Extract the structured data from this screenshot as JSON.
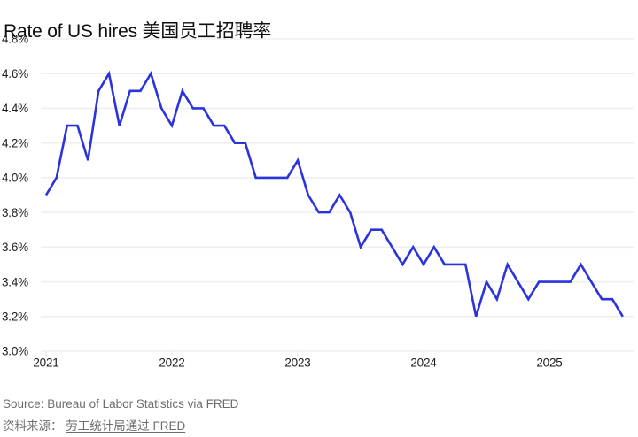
{
  "chart_data": {
    "type": "line",
    "title": "Rate of US hires 美国员工招聘率",
    "ylim": [
      3.0,
      4.8
    ],
    "grid": "horizontal",
    "legend": "none",
    "y_tick_labels": [
      "3.0%",
      "3.2%",
      "3.4%",
      "3.6%",
      "3.8%",
      "4.0%",
      "4.2%",
      "4.4%",
      "4.6%",
      "4.8%"
    ],
    "x_tick_labels": [
      "2021",
      "2022",
      "2023",
      "2024",
      "2025"
    ],
    "x": [
      "2021-01",
      "2021-02",
      "2021-03",
      "2021-04",
      "2021-05",
      "2021-06",
      "2021-07",
      "2021-08",
      "2021-09",
      "2021-10",
      "2021-11",
      "2021-12",
      "2022-01",
      "2022-02",
      "2022-03",
      "2022-04",
      "2022-05",
      "2022-06",
      "2022-07",
      "2022-08",
      "2022-09",
      "2022-10",
      "2022-11",
      "2022-12",
      "2023-01",
      "2023-02",
      "2023-03",
      "2023-04",
      "2023-05",
      "2023-06",
      "2023-07",
      "2023-08",
      "2023-09",
      "2023-10",
      "2023-11",
      "2023-12",
      "2024-01",
      "2024-02",
      "2024-03",
      "2024-04",
      "2024-05",
      "2024-06",
      "2024-07",
      "2024-08",
      "2024-09",
      "2024-10",
      "2024-11",
      "2024-12",
      "2025-01",
      "2025-02",
      "2025-03",
      "2025-04",
      "2025-05",
      "2025-06",
      "2025-07",
      "2025-08"
    ],
    "series": [
      {
        "name": "Rate of US hires",
        "color": "#2b33de",
        "values": [
          3.9,
          4.0,
          4.3,
          4.3,
          4.1,
          4.5,
          4.6,
          4.3,
          4.5,
          4.5,
          4.6,
          4.4,
          4.3,
          4.5,
          4.4,
          4.4,
          4.3,
          4.3,
          4.2,
          4.2,
          4.0,
          4.0,
          4.0,
          4.0,
          4.1,
          3.9,
          3.8,
          3.8,
          3.9,
          3.8,
          3.6,
          3.7,
          3.7,
          3.6,
          3.5,
          3.6,
          3.5,
          3.6,
          3.5,
          3.5,
          3.5,
          3.2,
          3.4,
          3.3,
          3.5,
          3.4,
          3.3,
          3.4,
          3.4,
          3.4,
          3.4,
          3.5,
          3.4,
          3.3,
          3.3,
          3.2
        ]
      }
    ]
  },
  "colors": {
    "line": "#2b33de",
    "grid": "#efefef",
    "axis_text": "#1c1c1c",
    "footer_text": "#6d6d6d",
    "title_text": "#0f0f0f"
  },
  "footer": {
    "source_prefix_en": "Source: ",
    "source_link_en": "Bureau of Labor Statistics via FRED",
    "source_prefix_zh": "资料来源： ",
    "source_link_zh": "劳工统计局通过 FRED"
  }
}
